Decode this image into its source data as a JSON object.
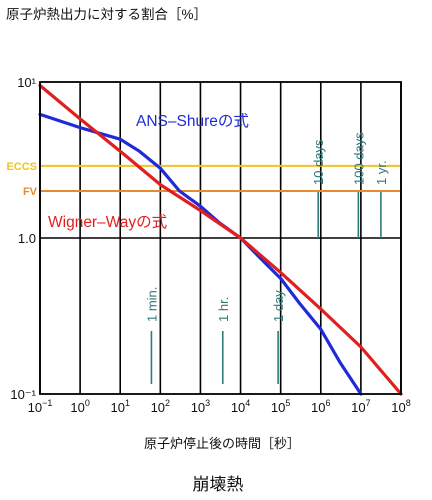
{
  "chart_data": {
    "type": "line",
    "title": "原子炉熱出力に対する割合［%］",
    "xlabel": "原子炉停止後の時間［秒］",
    "caption": "崩壊熱",
    "x_scale": "log",
    "y_scale": "log",
    "xlim": [
      0.1,
      100000000
    ],
    "ylim": [
      0.1,
      10
    ],
    "grid": "vertical decade lines",
    "x_ticks": [
      {
        "value": 0.1,
        "base": "10",
        "exp": "−1"
      },
      {
        "value": 1,
        "base": "10",
        "exp": "0"
      },
      {
        "value": 10,
        "base": "10",
        "exp": "1"
      },
      {
        "value": 100,
        "base": "10",
        "exp": "2"
      },
      {
        "value": 1000,
        "base": "10",
        "exp": "3"
      },
      {
        "value": 10000,
        "base": "10",
        "exp": "4"
      },
      {
        "value": 100000,
        "base": "10",
        "exp": "5"
      },
      {
        "value": 1000000,
        "base": "10",
        "exp": "6"
      },
      {
        "value": 10000000,
        "base": "10",
        "exp": "7"
      },
      {
        "value": 100000000,
        "base": "10",
        "exp": "8"
      }
    ],
    "y_ticks": [
      {
        "value": 0.1,
        "label": "10⁻¹"
      },
      {
        "value": 1,
        "label": "1.0"
      },
      {
        "value": 10,
        "label": "10¹"
      }
    ],
    "series": [
      {
        "name": "ANS–Shureの式",
        "color": "#1e2bd6",
        "x": [
          0.1,
          1,
          3,
          10,
          30,
          100,
          300,
          1000,
          3000,
          10000,
          30000,
          100000,
          300000,
          1000000,
          3000000,
          10000000
        ],
        "y": [
          6.2,
          5.1,
          4.7,
          4.3,
          3.6,
          2.8,
          2.0,
          1.6,
          1.25,
          1.0,
          0.75,
          0.55,
          0.38,
          0.26,
          0.16,
          0.1
        ]
      },
      {
        "name": "Wigner–Wayの式",
        "color": "#e01f1f",
        "x": [
          0.1,
          1,
          10,
          100,
          1000,
          10000,
          100000,
          1000000,
          10000000,
          100000000
        ],
        "y": [
          9.5,
          5.8,
          3.6,
          2.2,
          1.5,
          1.0,
          0.6,
          0.35,
          0.2,
          0.1
        ]
      }
    ],
    "reference_lines": [
      {
        "name": "ECCS",
        "y": 2.9,
        "color": "#f0c419"
      },
      {
        "name": "FV",
        "y": 2.0,
        "color": "#ea8a2e"
      }
    ],
    "time_markers": [
      {
        "label": "1 min.",
        "x": 60
      },
      {
        "label": "1 hr.",
        "x": 3600
      },
      {
        "label": "1 day",
        "x": 86400
      },
      {
        "label": "10 days",
        "x": 864000
      },
      {
        "label": "100 days",
        "x": 8640000
      },
      {
        "label": "1 yr.",
        "x": 31536000
      }
    ],
    "marker_color": "#2f7a7a"
  }
}
